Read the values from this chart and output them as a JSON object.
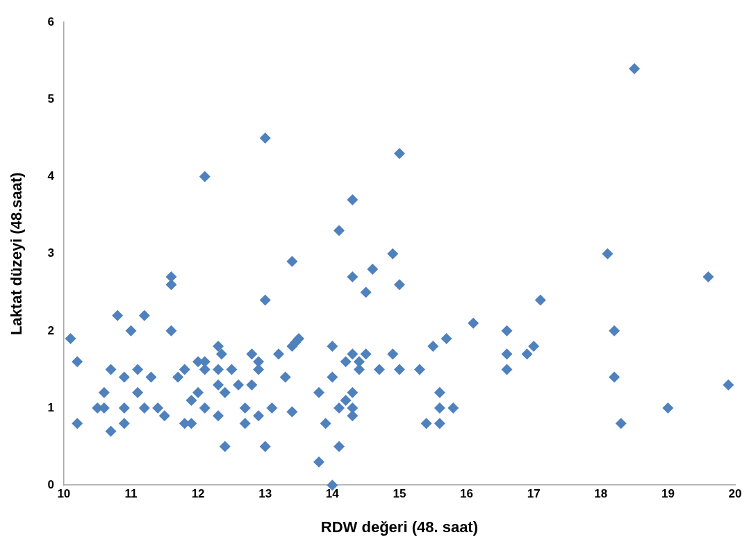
{
  "chart_data": {
    "type": "scatter",
    "xlabel": "RDW değeri (48. saat)",
    "ylabel": "Laktat düzeyi (48.saat)",
    "xlim": [
      10,
      20
    ],
    "xticks": [
      10,
      11,
      12,
      13,
      14,
      15,
      16,
      17,
      18,
      19,
      20
    ],
    "ylim": [
      0,
      6
    ],
    "yticks": [
      0,
      1,
      2,
      3,
      4,
      5,
      6
    ],
    "grid": false,
    "legend": false,
    "marker": "diamond",
    "series": [
      {
        "color": "#4f81bd",
        "x": [
          10.1,
          10.2,
          10.2,
          10.5,
          10.6,
          10.6,
          10.7,
          10.7,
          10.8,
          10.9,
          10.9,
          10.9,
          11.0,
          11.1,
          11.1,
          11.2,
          11.2,
          11.3,
          11.4,
          11.5,
          11.6,
          11.6,
          11.6,
          11.7,
          11.8,
          11.8,
          11.9,
          11.9,
          12.0,
          12.0,
          12.1,
          12.1,
          12.1,
          12.1,
          12.3,
          12.35,
          12.3,
          12.3,
          12.3,
          12.4,
          12.4,
          12.5,
          12.6,
          12.7,
          12.7,
          12.8,
          12.8,
          12.9,
          12.9,
          12.9,
          13.0,
          13.0,
          13.0,
          13.1,
          13.2,
          13.3,
          13.4,
          13.4,
          13.4,
          13.45,
          13.5,
          13.8,
          13.8,
          13.9,
          14.0,
          14.0,
          14.0,
          14.1,
          14.1,
          14.1,
          14.2,
          14.2,
          14.3,
          14.3,
          14.3,
          14.3,
          14.3,
          14.3,
          14.4,
          14.4,
          14.5,
          14.5,
          14.6,
          14.7,
          14.9,
          14.9,
          15.0,
          15.0,
          15.0,
          15.3,
          15.4,
          15.5,
          15.6,
          15.6,
          15.6,
          15.7,
          15.8,
          16.1,
          16.6,
          16.6,
          16.6,
          16.9,
          17.0,
          17.1,
          18.1,
          18.2,
          18.2,
          18.3,
          18.5,
          19.0,
          19.6,
          19.9
        ],
        "values": [
          1.9,
          1.6,
          0.8,
          1.0,
          1.2,
          1.0,
          1.5,
          0.7,
          2.2,
          1.4,
          1.0,
          0.8,
          2.0,
          1.5,
          1.2,
          2.2,
          1.0,
          1.4,
          1.0,
          0.9,
          2.7,
          2.6,
          2.0,
          1.4,
          1.5,
          0.8,
          1.1,
          0.8,
          1.2,
          1.6,
          1.6,
          1.5,
          4.0,
          1.0,
          1.8,
          1.7,
          1.5,
          1.3,
          0.9,
          1.2,
          0.5,
          1.5,
          1.3,
          1.0,
          0.8,
          1.7,
          1.3,
          1.6,
          1.5,
          0.9,
          4.5,
          2.4,
          0.5,
          1.0,
          1.7,
          1.4,
          2.9,
          1.8,
          0.95,
          1.85,
          1.9,
          1.2,
          0.3,
          0.8,
          1.8,
          1.4,
          0.0,
          3.3,
          1.0,
          0.5,
          1.1,
          1.6,
          3.7,
          2.7,
          1.7,
          1.2,
          1.0,
          0.9,
          1.6,
          1.5,
          2.5,
          1.7,
          2.8,
          1.5,
          3.0,
          1.7,
          4.3,
          2.6,
          1.5,
          1.5,
          0.8,
          1.8,
          1.2,
          1.0,
          0.8,
          1.9,
          1.0,
          2.1,
          2.0,
          1.7,
          1.5,
          1.7,
          1.8,
          2.4,
          3.0,
          2.0,
          1.4,
          0.8,
          5.4,
          1.0,
          2.7,
          1.3
        ]
      }
    ]
  }
}
